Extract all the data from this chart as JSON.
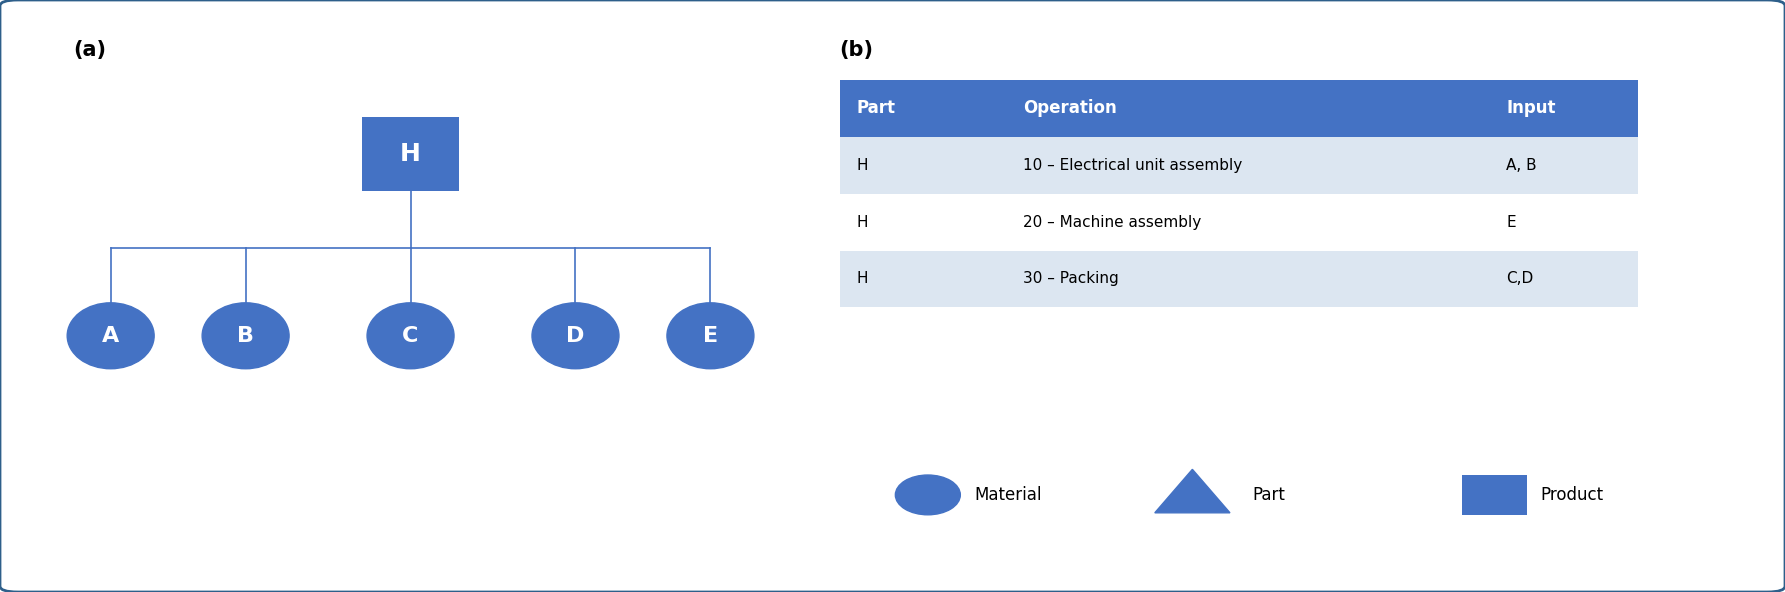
{
  "title_a": "(a)",
  "title_b": "(b)",
  "bg_color": "#ffffff",
  "border_color": "#2e5f8a",
  "node_color": "#4472c4",
  "node_text_color": "#ffffff",
  "line_color": "#4472c4",
  "header_bg": "#4472c4",
  "header_text": "#ffffff",
  "row_bg_odd": "#dce6f1",
  "row_bg_even": "#ffffff",
  "table_headers": [
    "Part",
    "Operation",
    "Input"
  ],
  "table_rows": [
    [
      "H",
      "10 – Electrical unit assembly",
      "A, B"
    ],
    [
      "H",
      "20 – Machine assembly",
      "E"
    ],
    [
      "H",
      "30 – Packing",
      "C,D"
    ]
  ],
  "tree_nodes": [
    "A",
    "B",
    "C",
    "D",
    "E"
  ],
  "root_node": "H",
  "legend_items": [
    {
      "label": "Material",
      "shape": "circle"
    },
    {
      "label": "Part",
      "shape": "triangle"
    },
    {
      "label": "Product",
      "shape": "square"
    }
  ]
}
